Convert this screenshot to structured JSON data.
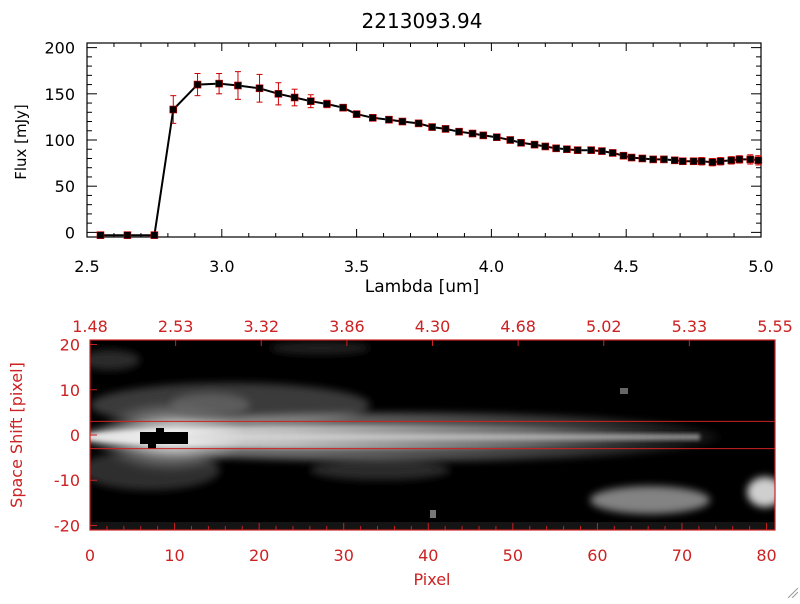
{
  "chart_data": [
    {
      "type": "line",
      "title": "2213093.94",
      "xlabel": "Lambda [um]",
      "ylabel": "Flux [mJy]",
      "xlim": [
        2.5,
        5.0
      ],
      "ylim": [
        -5,
        205
      ],
      "x_ticks": [
        "2.5",
        "3.0",
        "3.5",
        "4.0",
        "4.5",
        "5.0"
      ],
      "y_ticks": [
        "0",
        "50",
        "100",
        "150",
        "200"
      ],
      "grid": false,
      "colors": {
        "line": "#000000",
        "marker": "#000000",
        "error_bar": "#cc0000"
      },
      "series": [
        {
          "x": [
            2.55,
            2.65,
            2.75,
            2.82,
            2.91,
            2.99,
            3.06,
            3.14,
            3.21,
            3.27,
            3.33,
            3.39,
            3.45,
            3.5,
            3.56,
            3.62,
            3.67,
            3.73,
            3.78,
            3.83,
            3.88,
            3.93,
            3.97,
            4.02,
            4.07,
            4.11,
            4.16,
            4.2,
            4.24,
            4.28,
            4.32,
            4.37,
            4.41,
            4.45,
            4.49,
            4.52,
            4.56,
            4.6,
            4.64,
            4.68,
            4.71,
            4.75,
            4.78,
            4.82,
            4.85,
            4.89,
            4.92,
            4.96,
            4.99
          ],
          "y": [
            -3,
            -3,
            -3,
            133,
            160,
            161,
            159,
            156,
            150,
            146,
            142,
            139,
            135,
            128,
            124,
            122,
            120,
            118,
            114,
            112,
            109,
            107,
            105,
            103,
            100,
            97,
            95,
            93,
            91,
            90,
            89,
            89,
            88,
            86,
            83,
            81,
            80,
            79,
            79,
            78,
            77,
            77,
            77,
            76,
            77,
            78,
            79,
            79,
            78
          ],
          "yerr": [
            0,
            0,
            0,
            15,
            12,
            11,
            15,
            15,
            12,
            9,
            7,
            4,
            3,
            2,
            2,
            2,
            2,
            2,
            2,
            2,
            2,
            2,
            2,
            2,
            2,
            2,
            2,
            2,
            2,
            2,
            2,
            2,
            2,
            2,
            2,
            2,
            2,
            2,
            2,
            2,
            2,
            2,
            4,
            4,
            4,
            4,
            4,
            5,
            5
          ]
        }
      ]
    },
    {
      "type": "heatmap",
      "xlabel": "Pixel",
      "ylabel": "Space Shift [pixel]",
      "xlim": [
        0,
        81
      ],
      "ylim": [
        -21,
        21
      ],
      "x_ticks": [
        "0",
        "10",
        "20",
        "30",
        "40",
        "50",
        "60",
        "70",
        "80"
      ],
      "y_ticks": [
        "-20",
        "-10",
        "0",
        "10",
        "20"
      ],
      "top_axis_ticks": [
        "1.48",
        "2.53",
        "3.32",
        "3.86",
        "4.30",
        "4.68",
        "5.02",
        "5.33",
        "5.55"
      ],
      "extraction_window": [
        -3,
        3
      ],
      "colormap": "grayscale",
      "colors": {
        "axis": "#cc2222",
        "extraction_lines": "#cc2222"
      }
    }
  ]
}
